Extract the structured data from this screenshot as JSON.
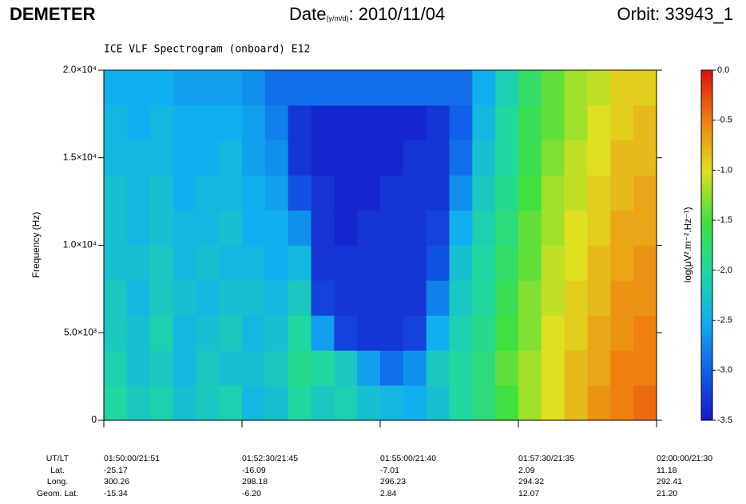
{
  "header": {
    "mission": "DEMETER",
    "date_label": "Date",
    "date_format": "(y/m/d)",
    "date": ": 2010/11/04",
    "orbit": "Orbit: 33943_1"
  },
  "chart_data": {
    "type": "heatmap",
    "title": "ICE VLF Spectrogram (onboard) E12",
    "y_label": "Frequency (Hz)",
    "ylim": [
      0,
      20000
    ],
    "yticks": [
      0,
      {
        "value": 5000,
        "label": "5.0×10³"
      },
      {
        "value": 10000,
        "label": "1.0×10⁴"
      },
      {
        "value": 15000,
        "label": "1.5×10⁴"
      },
      {
        "value": 20000,
        "label": "2.0×10⁴"
      }
    ],
    "y_bins": [
      0,
      2000,
      4000,
      6000,
      8000,
      10000,
      12000,
      14000,
      16000,
      18000,
      20000
    ],
    "colorbar_label": "log(μV².m⁻².Hz⁻¹)",
    "zlim": [
      -3.5,
      0
    ],
    "zticks": [
      {
        "value": 0,
        "label": "0.0"
      },
      -0.5,
      {
        "value": -1,
        "label": "-1.0"
      },
      -1.5,
      {
        "value": -2,
        "label": "-2.0"
      },
      -2.5,
      {
        "value": -3,
        "label": "-3.0"
      },
      -3.5
    ],
    "colormap": [
      "#1818c8",
      "#1060e8",
      "#10b0f0",
      "#20d8a0",
      "#40e040",
      "#e0e020",
      "#f08010",
      "#e01010"
    ],
    "z": [
      [
        -2.0,
        -2.2,
        -2.1,
        -2.3,
        -2.2,
        -2.1,
        -2.4,
        -2.3,
        -2.0,
        -2.2,
        -2.1,
        -2.3,
        -2.4,
        -2.5,
        -2.3,
        -2.0,
        -1.8,
        -1.5,
        -1.2,
        -1.0,
        -0.8,
        -0.6,
        -0.5,
        -0.4
      ],
      [
        -2.1,
        -2.3,
        -2.2,
        -2.4,
        -2.2,
        -2.3,
        -2.3,
        -2.2,
        -1.9,
        -2.0,
        -2.2,
        -2.6,
        -2.9,
        -2.7,
        -2.2,
        -2.0,
        -1.8,
        -1.4,
        -1.2,
        -1.0,
        -0.8,
        -0.7,
        -0.5,
        -0.5
      ],
      [
        -2.2,
        -2.3,
        -2.1,
        -2.4,
        -2.3,
        -2.2,
        -2.4,
        -2.3,
        -2.0,
        -2.6,
        -3.2,
        -3.3,
        -3.3,
        -3.2,
        -2.5,
        -2.1,
        -1.9,
        -1.5,
        -1.3,
        -1.0,
        -0.9,
        -0.7,
        -0.6,
        -0.5
      ],
      [
        -2.2,
        -2.4,
        -2.2,
        -2.3,
        -2.4,
        -2.3,
        -2.3,
        -2.4,
        -2.2,
        -3.2,
        -3.3,
        -3.3,
        -3.3,
        -3.3,
        -2.8,
        -2.2,
        -2.0,
        -1.6,
        -1.3,
        -1.1,
        -0.9,
        -0.8,
        -0.6,
        -0.6
      ],
      [
        -2.3,
        -2.3,
        -2.2,
        -2.4,
        -2.3,
        -2.4,
        -2.4,
        -2.5,
        -2.4,
        -3.3,
        -3.3,
        -3.3,
        -3.3,
        -3.3,
        -3.1,
        -2.3,
        -2.0,
        -1.7,
        -1.4,
        -1.1,
        -1.0,
        -0.8,
        -0.7,
        -0.6
      ],
      [
        -2.3,
        -2.4,
        -2.3,
        -2.4,
        -2.4,
        -2.3,
        -2.5,
        -2.5,
        -2.7,
        -3.3,
        -3.4,
        -3.3,
        -3.3,
        -3.3,
        -3.2,
        -2.5,
        -2.1,
        -1.8,
        -1.4,
        -1.2,
        -1.0,
        -0.9,
        -0.7,
        -0.7
      ],
      [
        -2.3,
        -2.4,
        -2.3,
        -2.5,
        -2.4,
        -2.4,
        -2.5,
        -2.6,
        -3.1,
        -3.3,
        -3.4,
        -3.4,
        -3.3,
        -3.3,
        -3.3,
        -2.7,
        -2.2,
        -1.9,
        -1.5,
        -1.2,
        -1.1,
        -0.9,
        -0.8,
        -0.7
      ],
      [
        -2.4,
        -2.4,
        -2.4,
        -2.5,
        -2.5,
        -2.4,
        -2.6,
        -2.7,
        -3.3,
        -3.4,
        -3.4,
        -3.4,
        -3.4,
        -3.3,
        -3.3,
        -2.9,
        -2.3,
        -2.0,
        -1.6,
        -1.3,
        -1.1,
        -1.0,
        -0.8,
        -0.8
      ],
      [
        -2.4,
        -2.5,
        -2.4,
        -2.5,
        -2.5,
        -2.5,
        -2.6,
        -2.8,
        -3.3,
        -3.4,
        -3.4,
        -3.4,
        -3.4,
        -3.4,
        -3.3,
        -3.0,
        -2.4,
        -2.0,
        -1.6,
        -1.4,
        -1.2,
        -1.0,
        -0.9,
        -0.8
      ],
      [
        -2.5,
        -2.5,
        -2.5,
        -2.6,
        -2.6,
        -2.6,
        -2.7,
        -2.9,
        -2.9,
        -2.9,
        -2.9,
        -2.9,
        -2.9,
        -2.9,
        -2.9,
        -2.9,
        -2.5,
        -2.1,
        -1.7,
        -1.4,
        -1.2,
        -1.1,
        -0.9,
        -0.9
      ]
    ]
  },
  "orbit_table": {
    "row_labels": [
      "UT/LT",
      "Lat.",
      "Long.",
      "Geom. Lat."
    ],
    "columns": [
      [
        "01:50:00/21:51",
        "-25.17",
        "300.26",
        "-15.34"
      ],
      [
        "01:52:30/21:45",
        "-16.09",
        "298.18",
        "-6.20"
      ],
      [
        "01:55:00/21:40",
        "-7.01",
        "296.23",
        "2.84"
      ],
      [
        "01:57:30/21:35",
        "2.09",
        "294.32",
        "12.07"
      ],
      [
        "02:00:00/21:30",
        "11.18",
        "292.41",
        "21.20"
      ]
    ]
  }
}
